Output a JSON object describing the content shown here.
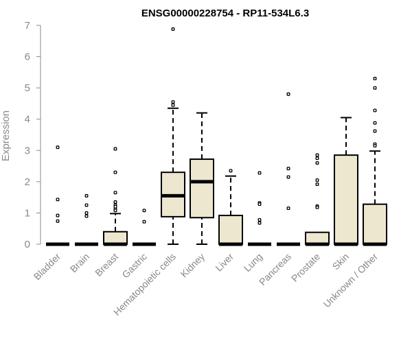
{
  "chart_data": {
    "type": "box",
    "title": "ENSG00000228754 - RP11-534L6.3",
    "xlabel": "",
    "ylabel": "Expression",
    "ylim": [
      0,
      7
    ],
    "yticks": [
      0,
      1,
      2,
      3,
      4,
      5,
      6,
      7
    ],
    "box_fill": "#ede7d0",
    "categories": [
      "Bladder",
      "Brain",
      "Breast",
      "Gastric",
      "Hematopoietic cells",
      "Kidney",
      "Liver",
      "Lung",
      "Pancreas",
      "Prostate",
      "Skin",
      "Unknown / Other"
    ],
    "boxes": [
      {
        "min": 0,
        "q1": 0,
        "median": 0,
        "q3": 0,
        "max": 0,
        "outliers": [
          3.1,
          1.43,
          0.92,
          0.74
        ]
      },
      {
        "min": 0,
        "q1": 0,
        "median": 0,
        "q3": 0,
        "max": 0,
        "outliers": [
          1.55,
          1.25,
          1.0,
          0.9
        ]
      },
      {
        "min": 0,
        "q1": 0,
        "median": 0,
        "q3": 0.4,
        "max": 0.98,
        "outliers": [
          3.05,
          2.3,
          1.65,
          1.35,
          1.25,
          1.2,
          1.12,
          1.08
        ]
      },
      {
        "min": 0,
        "q1": 0,
        "median": 0,
        "q3": 0,
        "max": 0,
        "outliers": [
          1.08,
          0.72
        ]
      },
      {
        "min": 0,
        "q1": 0.88,
        "median": 1.55,
        "q3": 2.3,
        "max": 4.35,
        "outliers": [
          6.88,
          4.55,
          4.45
        ]
      },
      {
        "min": 0,
        "q1": 0.85,
        "median": 2.0,
        "q3": 2.72,
        "max": 4.2,
        "outliers": []
      },
      {
        "min": 0,
        "q1": 0,
        "median": 0,
        "q3": 0.92,
        "max": 2.18,
        "outliers": [
          2.35
        ]
      },
      {
        "min": 0,
        "q1": 0,
        "median": 0,
        "q3": 0,
        "max": 0,
        "outliers": [
          2.28,
          1.32,
          1.28,
          0.78,
          0.68
        ]
      },
      {
        "min": 0,
        "q1": 0,
        "median": 0,
        "q3": 0,
        "max": 0,
        "outliers": [
          4.8,
          2.42,
          2.15,
          1.15
        ]
      },
      {
        "min": 0,
        "q1": 0,
        "median": 0,
        "q3": 0.38,
        "max": 0.38,
        "outliers": [
          2.85,
          2.75,
          2.6,
          2.05,
          1.92,
          1.22,
          1.18
        ]
      },
      {
        "min": 0,
        "q1": 0,
        "median": 0,
        "q3": 2.85,
        "max": 4.05,
        "outliers": []
      },
      {
        "min": 0,
        "q1": 0,
        "median": 0,
        "q3": 1.28,
        "max": 2.98,
        "outliers": [
          5.3,
          5.0,
          4.28,
          3.88,
          3.62,
          3.2,
          3.15
        ]
      }
    ]
  }
}
